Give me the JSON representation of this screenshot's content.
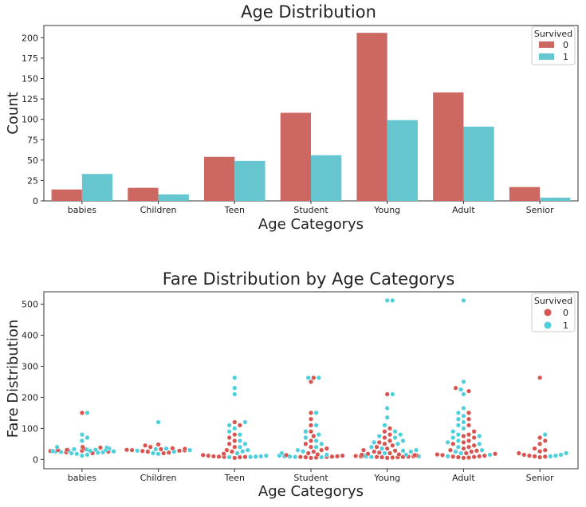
{
  "chart_data": [
    {
      "type": "bar",
      "title": "Age Distribution",
      "xlabel": "Age Categorys",
      "ylabel": "Count",
      "categories": [
        "babies",
        "Children",
        "Teen",
        "Student",
        "Young",
        "Adult",
        "Senior"
      ],
      "ylim": [
        0,
        215
      ],
      "yticks": [
        0,
        25,
        50,
        75,
        100,
        125,
        150,
        175,
        200
      ],
      "legend": {
        "title": "Survived",
        "position": "top-right"
      },
      "series": [
        {
          "name": "0",
          "color": "#cc6861",
          "values": [
            14,
            16,
            54,
            108,
            206,
            133,
            17
          ]
        },
        {
          "name": "1",
          "color": "#66c6cf",
          "values": [
            33,
            8,
            49,
            56,
            99,
            91,
            4
          ]
        }
      ]
    },
    {
      "type": "scatter",
      "subtype": "swarm",
      "title": "Fare Distribution by Age Categorys",
      "xlabel": "Age Categorys",
      "ylabel": "Fare Distribution",
      "categories": [
        "babies",
        "Children",
        "Teen",
        "Student",
        "Young",
        "Adult",
        "Senior"
      ],
      "ylim": [
        -30,
        540
      ],
      "yticks": [
        0,
        100,
        200,
        300,
        400,
        500
      ],
      "legend": {
        "title": "Survived",
        "position": "top-right"
      },
      "series": [
        {
          "name": "0",
          "color": "#d9534f",
          "points": {
            "babies": [
              20,
              23,
              25,
              27,
              28,
              30,
              31,
              35,
              38,
              40,
              150
            ],
            "Children": [
              20,
              22,
              25,
              27,
              28,
              29,
              30,
              31,
              33,
              34,
              36,
              40,
              45,
              48
            ],
            "Teen": [
              5,
              7,
              8,
              8,
              9,
              10,
              12,
              14,
              18,
              25,
              30,
              40,
              50,
              60,
              70,
              80,
              110,
              120
            ],
            "Student": [
              5,
              6,
              7,
              8,
              8,
              9,
              10,
              12,
              14,
              16,
              20,
              25,
              30,
              35,
              40,
              50,
              60,
              75,
              90,
              110,
              130,
              150,
              250,
              263
            ],
            "Young": [
              5,
              6,
              7,
              7,
              8,
              8,
              9,
              10,
              10,
              11,
              12,
              13,
              14,
              15,
              16,
              18,
              20,
              22,
              25,
              28,
              30,
              35,
              40,
              45,
              50,
              55,
              60,
              70,
              80,
              90,
              100,
              210
            ],
            "Adult": [
              5,
              6,
              7,
              8,
              9,
              10,
              12,
              14,
              16,
              18,
              20,
              25,
              28,
              30,
              35,
              40,
              45,
              50,
              55,
              60,
              70,
              75,
              80,
              90,
              110,
              130,
              150,
              220,
              230
            ],
            "Senior": [
              7,
              9,
              10,
              12,
              15,
              20,
              26,
              30,
              35,
              50,
              60,
              70,
              263
            ]
          }
        },
        {
          "name": "1",
          "color": "#4dd0dc",
          "points": {
            "babies": [
              12,
              15,
              18,
              20,
              22,
              23,
              24,
              25,
              26,
              27,
              28,
              29,
              30,
              31,
              32,
              33,
              35,
              38,
              40,
              60,
              70,
              80,
              150
            ],
            "Children": [
              18,
              20,
              25,
              28,
              30,
              33,
              35,
              120
            ],
            "Teen": [
              7,
              8,
              9,
              10,
              12,
              20,
              26,
              30,
              40,
              50,
              60,
              80,
              90,
              100,
              110,
              120,
              210,
              230,
              263
            ],
            "Student": [
              7,
              8,
              9,
              10,
              12,
              15,
              20,
              26,
              30,
              40,
              50,
              60,
              70,
              80,
              90,
              110,
              150,
              263,
              263
            ],
            "Young": [
              8,
              9,
              10,
              12,
              15,
              20,
              25,
              28,
              30,
              35,
              40,
              50,
              55,
              60,
              70,
              75,
              80,
              90,
              110,
              135,
              165,
              210,
              512,
              512
            ],
            "Adult": [
              10,
              15,
              20,
              25,
              30,
              40,
              50,
              55,
              60,
              70,
              75,
              80,
              90,
              100,
              110,
              120,
              130,
              140,
              150,
              165,
              210,
              225,
              250,
              512
            ],
            "Senior": [
              10,
              12,
              15,
              20,
              80
            ]
          }
        }
      ]
    }
  ]
}
